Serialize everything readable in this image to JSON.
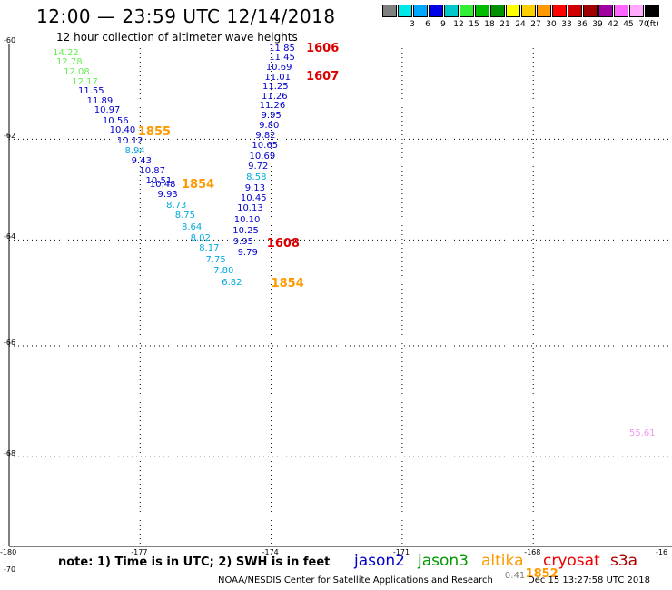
{
  "header": {
    "title": "12:00 — 23:59 UTC 12/14/2018",
    "subtitle": "12 hour collection of altimeter wave heights"
  },
  "legend": {
    "unit": "(ft)",
    "swatches": [
      {
        "color": "#808080",
        "label": ""
      },
      {
        "color": "#00e8e8",
        "label": "3"
      },
      {
        "color": "#00a8ff",
        "label": "6"
      },
      {
        "color": "#0000e8",
        "label": "9"
      },
      {
        "color": "#00c8c8",
        "label": "12"
      },
      {
        "color": "#33ee33",
        "label": "15"
      },
      {
        "color": "#00bb00",
        "label": "18"
      },
      {
        "color": "#009000",
        "label": "21"
      },
      {
        "color": "#ffff00",
        "label": "24"
      },
      {
        "color": "#ffd000",
        "label": "27"
      },
      {
        "color": "#ff9900",
        "label": "30"
      },
      {
        "color": "#ff0000",
        "label": "33"
      },
      {
        "color": "#d00000",
        "label": "36"
      },
      {
        "color": "#a00000",
        "label": "39"
      },
      {
        "color": "#a000a0",
        "label": "42"
      },
      {
        "color": "#ff66ff",
        "label": "45"
      },
      {
        "color": "#ffaaff",
        "label": "70"
      },
      {
        "color": "#000000",
        "label": ""
      }
    ]
  },
  "axes": {
    "y_ticks": [
      "-60",
      "-62",
      "-64",
      "-66",
      "-68",
      "-70"
    ],
    "x_ticks": [
      "-180",
      "-177",
      "-174",
      "-171",
      "-168",
      "-16"
    ]
  },
  "readings": [
    {
      "v": "14.22",
      "lon": -179.0,
      "lat": -60.12,
      "c": "#66ee55"
    },
    {
      "v": "12.78",
      "lon": -178.92,
      "lat": -60.32,
      "c": "#66ee55"
    },
    {
      "v": "12.08",
      "lon": -178.75,
      "lat": -60.52,
      "c": "#66ee55"
    },
    {
      "v": "12.17",
      "lon": -178.56,
      "lat": -60.73,
      "c": "#66ee55"
    },
    {
      "v": "11.55",
      "lon": -178.42,
      "lat": -60.93,
      "c": "#0000cc"
    },
    {
      "v": "11.89",
      "lon": -178.22,
      "lat": -61.13,
      "c": "#0000cc"
    },
    {
      "v": "10.97",
      "lon": -178.05,
      "lat": -61.33,
      "c": "#0000cc"
    },
    {
      "v": "10.56",
      "lon": -177.86,
      "lat": -61.54,
      "c": "#0000cc"
    },
    {
      "v": "10.40",
      "lon": -177.7,
      "lat": -61.74,
      "c": "#0000cc"
    },
    {
      "v": "10.12",
      "lon": -177.53,
      "lat": -61.95,
      "c": "#0000cc"
    },
    {
      "v": "8.94",
      "lon": -177.35,
      "lat": -62.15,
      "c": "#00aadd"
    },
    {
      "v": "9.43",
      "lon": -177.2,
      "lat": -62.36,
      "c": "#0000cc"
    },
    {
      "v": "10.87",
      "lon": -177.02,
      "lat": -62.57,
      "c": "#0000cc"
    },
    {
      "v": "10.51",
      "lon": -176.87,
      "lat": -62.77,
      "c": "#0000cc"
    },
    {
      "v": "10.48",
      "lon": -176.78,
      "lat": -62.83,
      "c": "#0000cc"
    },
    {
      "v": "9.93",
      "lon": -176.6,
      "lat": -63.04,
      "c": "#0000cc"
    },
    {
      "v": "8.73",
      "lon": -176.4,
      "lat": -63.25,
      "c": "#00aadd"
    },
    {
      "v": "8.75",
      "lon": -176.2,
      "lat": -63.45,
      "c": "#00aadd"
    },
    {
      "v": "8.64",
      "lon": -176.05,
      "lat": -63.67,
      "c": "#00aadd"
    },
    {
      "v": "8.02",
      "lon": -175.85,
      "lat": -63.88,
      "c": "#00aadd"
    },
    {
      "v": "8.17",
      "lon": -175.65,
      "lat": -64.08,
      "c": "#00aadd"
    },
    {
      "v": "7.75",
      "lon": -175.5,
      "lat": -64.3,
      "c": "#00aadd"
    },
    {
      "v": "7.80",
      "lon": -175.32,
      "lat": -64.51,
      "c": "#00aadd"
    },
    {
      "v": "6.82",
      "lon": -175.13,
      "lat": -64.74,
      "c": "#00aadd"
    },
    {
      "v": "11.85",
      "lon": -174.05,
      "lat": -60.02,
      "c": "#0000cc"
    },
    {
      "v": "11.45",
      "lon": -174.05,
      "lat": -60.22,
      "c": "#0000cc"
    },
    {
      "v": "10.69",
      "lon": -174.12,
      "lat": -60.43,
      "c": "#0000cc"
    },
    {
      "v": "11.01",
      "lon": -174.15,
      "lat": -60.63,
      "c": "#0000cc"
    },
    {
      "v": "11.25",
      "lon": -174.2,
      "lat": -60.83,
      "c": "#0000cc"
    },
    {
      "v": "11.26",
      "lon": -174.22,
      "lat": -61.03,
      "c": "#0000cc"
    },
    {
      "v": "11.26",
      "lon": -174.27,
      "lat": -61.23,
      "c": "#0000cc"
    },
    {
      "v": "9.95",
      "lon": -174.23,
      "lat": -61.43,
      "c": "#0000cc"
    },
    {
      "v": "9.80",
      "lon": -174.28,
      "lat": -61.64,
      "c": "#0000cc"
    },
    {
      "v": "9.82",
      "lon": -174.36,
      "lat": -61.84,
      "c": "#0000cc"
    },
    {
      "v": "10.65",
      "lon": -174.44,
      "lat": -62.05,
      "c": "#0000cc"
    },
    {
      "v": "10.69",
      "lon": -174.5,
      "lat": -62.26,
      "c": "#0000cc"
    },
    {
      "v": "9.72",
      "lon": -174.53,
      "lat": -62.47,
      "c": "#0000cc"
    },
    {
      "v": "8.58",
      "lon": -174.57,
      "lat": -62.68,
      "c": "#00aadd"
    },
    {
      "v": "9.13",
      "lon": -174.6,
      "lat": -62.9,
      "c": "#0000cc"
    },
    {
      "v": "10.45",
      "lon": -174.7,
      "lat": -63.1,
      "c": "#0000cc"
    },
    {
      "v": "10.13",
      "lon": -174.78,
      "lat": -63.31,
      "c": "#0000cc"
    },
    {
      "v": "10.10",
      "lon": -174.85,
      "lat": -63.53,
      "c": "#0000cc"
    },
    {
      "v": "10.25",
      "lon": -174.88,
      "lat": -63.74,
      "c": "#0000cc"
    },
    {
      "v": "9.95",
      "lon": -174.87,
      "lat": -63.95,
      "c": "#0000cc"
    },
    {
      "v": "9.79",
      "lon": -174.77,
      "lat": -64.16,
      "c": "#0000cc"
    },
    {
      "v": "55.61",
      "lon": -165.8,
      "lat": -67.52,
      "c": "#ee99ee"
    },
    {
      "v": "0.41",
      "lon": -168.65,
      "lat": -69.99,
      "c": "#808080"
    }
  ],
  "times": [
    {
      "t": "1606",
      "lon": -173.2,
      "lat": -59.98,
      "c": "#dd0000"
    },
    {
      "t": "1607",
      "lon": -173.2,
      "lat": -60.58,
      "c": "#dd0000"
    },
    {
      "t": "1855",
      "lon": -177.05,
      "lat": -61.73,
      "c": "#ff9900"
    },
    {
      "t": "1854",
      "lon": -176.05,
      "lat": -62.8,
      "c": "#ff9900"
    },
    {
      "t": "1608",
      "lon": -174.1,
      "lat": -63.95,
      "c": "#dd0000"
    },
    {
      "t": "1854",
      "lon": -174.0,
      "lat": -64.73,
      "c": "#ff9900"
    },
    {
      "t": "1852",
      "lon": -168.18,
      "lat": -69.93,
      "c": "#ff9900"
    }
  ],
  "note": "note: 1) Time is in UTC; 2) SWH is in feet",
  "satellites": [
    {
      "name": "jason2",
      "color": "#0000cc"
    },
    {
      "name": "jason3",
      "color": "#009900"
    },
    {
      "name": "altika",
      "color": "#ff9900"
    },
    {
      "name": "cryosat",
      "color": "#ee0000"
    },
    {
      "name": "s3a",
      "color": "#aa0000"
    }
  ],
  "footer": "NOAA/NESDIS Center for Satellite Applications and Research",
  "timestamp": "Dec 15 13:27:58 UTC 2018"
}
